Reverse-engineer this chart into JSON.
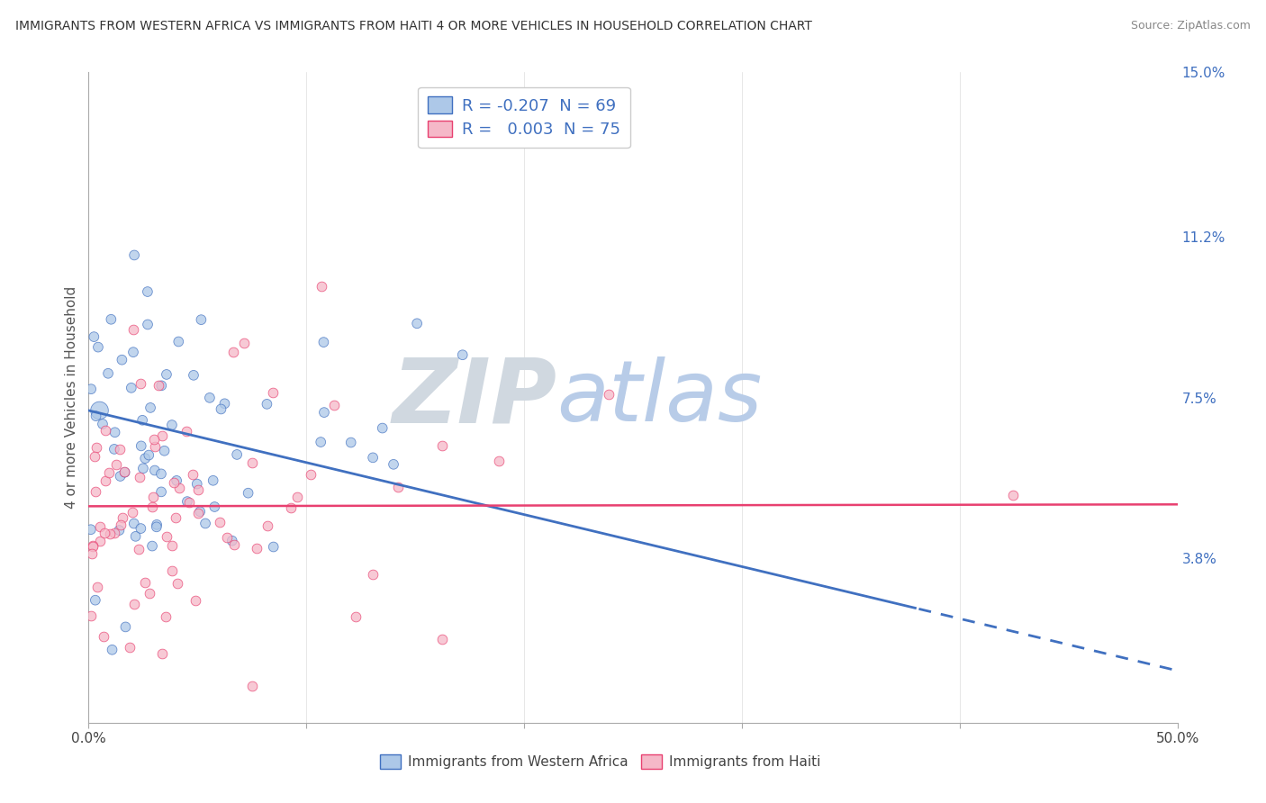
{
  "title": "IMMIGRANTS FROM WESTERN AFRICA VS IMMIGRANTS FROM HAITI 4 OR MORE VEHICLES IN HOUSEHOLD CORRELATION CHART",
  "source": "Source: ZipAtlas.com",
  "ylabel": "4 or more Vehicles in Household",
  "xlim": [
    0.0,
    0.5
  ],
  "ylim": [
    0.0,
    0.15
  ],
  "right_yticks": [
    0.038,
    0.075,
    0.112,
    0.15
  ],
  "right_yticklabels": [
    "3.8%",
    "7.5%",
    "11.2%",
    "15.0%"
  ],
  "series1_color": "#adc8e8",
  "series2_color": "#f5b8c8",
  "trend1_color": "#4070c0",
  "trend2_color": "#e84070",
  "watermark_zip_color": "#d0d8e0",
  "watermark_atlas_color": "#b8cce8",
  "background_color": "#ffffff",
  "series1_name": "Immigrants from Western Africa",
  "series2_name": "Immigrants from Haiti",
  "series1_R": -0.207,
  "series1_N": 69,
  "series2_R": 0.003,
  "series2_N": 75,
  "trend1_start_y": 0.072,
  "trend1_end_y": 0.012,
  "trend1_start_x": 0.0,
  "trend1_end_x": 0.5,
  "trend1_dash_start": 0.38,
  "trend2_y": 0.048,
  "legend_r1_color": "#e84070",
  "legend_r2_color": "#4070c0",
  "legend_n_color": "#4070c0"
}
